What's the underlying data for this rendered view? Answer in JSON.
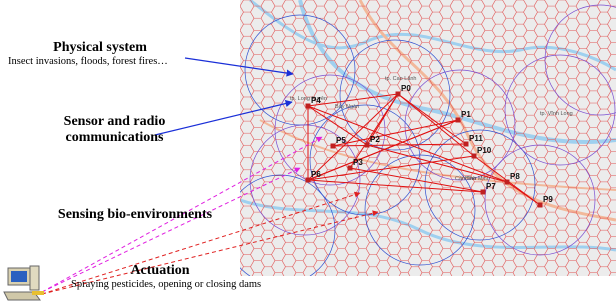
{
  "labels": {
    "physical_system": "Physical system",
    "physical_examples": "Insect invasions, floods, forest fires…",
    "sensor_comm": "Sensor and radio communications",
    "sensing": "Sensing bio-environments",
    "actuation": "Actuation",
    "actuation_examples": "Spraying pesticides, opening or closing dams"
  },
  "nodes": [
    {
      "label": "P0"
    },
    {
      "label": "P1"
    },
    {
      "label": "P2"
    },
    {
      "label": "P3"
    },
    {
      "label": "P4"
    },
    {
      "label": "P5"
    },
    {
      "label": "P6"
    },
    {
      "label": "P7"
    },
    {
      "label": "P8"
    },
    {
      "label": "P9"
    },
    {
      "label": "P10"
    },
    {
      "label": "P11"
    }
  ],
  "map_labels": [
    {
      "label": "tp. Cao Lãnh"
    },
    {
      "label": "tp. Vĩnh Long"
    },
    {
      "label": "Cần Thơ"
    },
    {
      "label": "Bình Minh"
    },
    {
      "label": "tp. Long Xuyên"
    },
    {
      "label": "Bảy Ngàn"
    }
  ]
}
